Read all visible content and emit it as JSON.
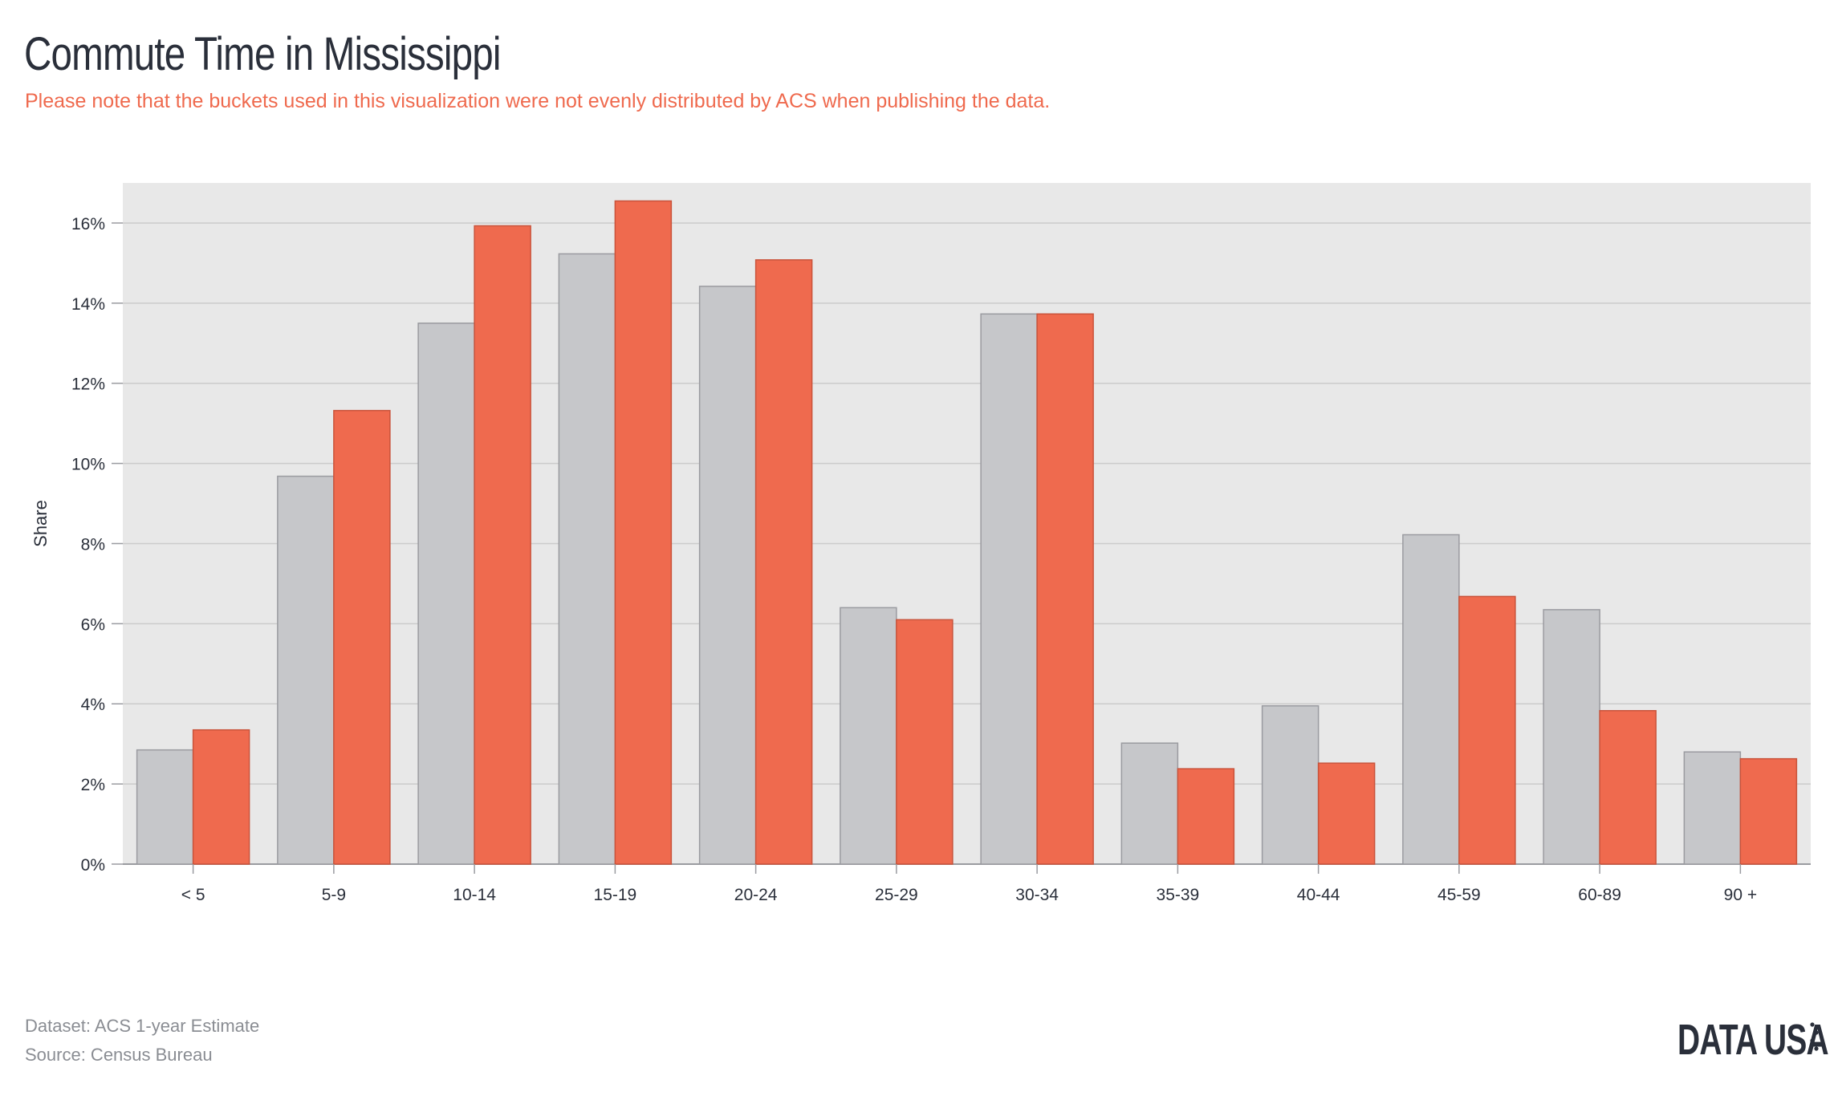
{
  "header": {
    "title": "Commute Time in Mississippi",
    "subtitle": "Please note that the buckets used in this visualization were not evenly distributed by ACS when publishing the data."
  },
  "footer": {
    "dataset": "Dataset: ACS 1-year Estimate",
    "source": "Source: Census Bureau",
    "logo": "DATA USA"
  },
  "colors": {
    "plot_background": "#e8e8e8",
    "gray_series": "#c6c7ca",
    "gray_stroke": "#9a9ba0",
    "red_series": "#ef6a4e",
    "red_stroke": "#c9533b",
    "gridline": "#cbcbcb"
  },
  "chart_data": {
    "type": "bar",
    "ylabel": "Share",
    "xlabel": "",
    "ylim": [
      0,
      17
    ],
    "yticks": [
      0,
      2,
      4,
      6,
      8,
      10,
      12,
      14,
      16
    ],
    "ytick_labels": [
      "0%",
      "2%",
      "4%",
      "6%",
      "8%",
      "10%",
      "12%",
      "14%",
      "16%"
    ],
    "grid": true,
    "categories": [
      "< 5",
      "5-9",
      "10-14",
      "15-19",
      "20-24",
      "25-29",
      "30-34",
      "35-39",
      "40-44",
      "45-59",
      "60-89",
      "90 +"
    ],
    "series": [
      {
        "color": "#c6c7ca",
        "values": [
          2.85,
          9.68,
          13.5,
          15.23,
          14.42,
          6.4,
          13.73,
          3.02,
          3.95,
          8.22,
          6.35,
          2.8
        ]
      },
      {
        "color": "#ef6a4e",
        "values": [
          3.35,
          11.32,
          15.93,
          16.55,
          15.08,
          6.1,
          13.73,
          2.38,
          2.52,
          6.68,
          3.83,
          2.63
        ]
      }
    ]
  }
}
